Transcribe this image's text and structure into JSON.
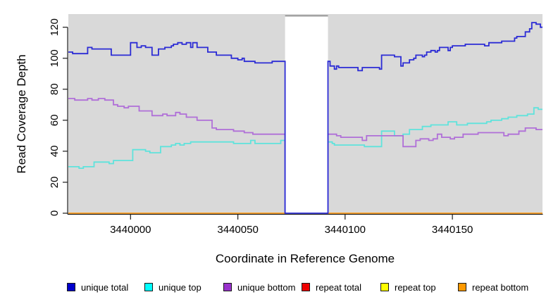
{
  "figure": {
    "title": ""
  },
  "chart_data": {
    "type": "line",
    "subtype": "step",
    "title": "",
    "xlabel": "Coordinate in Reference Genome",
    "ylabel": "Read Coverage Depth",
    "xlim": [
      3439971,
      3440192
    ],
    "ylim": [
      0,
      128.5
    ],
    "x_ticks": [
      "3440000",
      "3440050",
      "3440100",
      "3440150"
    ],
    "x_tick_values": [
      3440000,
      3440050,
      3440100,
      3440150
    ],
    "y_ticks": [
      "0",
      "20",
      "40",
      "60",
      "80",
      "100",
      "120"
    ],
    "y_tick_values": [
      0,
      20,
      40,
      60,
      80,
      100,
      120
    ],
    "grid": "off",
    "legend_position": "bottom",
    "plot_bg_color": "#D9D9D9",
    "gap_mask": {
      "x_start": 3440072,
      "x_end": 3440092,
      "fill": "#FFFFFF",
      "top_border_color": "#8C8C8C"
    },
    "series": [
      {
        "name": "unique total",
        "line_color": "#2B2BD5",
        "swatch_color": "#0000CC",
        "steps": [
          [
            3439971,
            104
          ],
          [
            3439973,
            103
          ],
          [
            3439980,
            107
          ],
          [
            3439982,
            106
          ],
          [
            3439991,
            102
          ],
          [
            3440000,
            110
          ],
          [
            3440003,
            107
          ],
          [
            3440005,
            108
          ],
          [
            3440007,
            107
          ],
          [
            3440010,
            102
          ],
          [
            3440013,
            106
          ],
          [
            3440016,
            107
          ],
          [
            3440019,
            108
          ],
          [
            3440020,
            109
          ],
          [
            3440022,
            110
          ],
          [
            3440024,
            109
          ],
          [
            3440026,
            110
          ],
          [
            3440028,
            107
          ],
          [
            3440029,
            110
          ],
          [
            3440031,
            107
          ],
          [
            3440036,
            104
          ],
          [
            3440040,
            102
          ],
          [
            3440047,
            100
          ],
          [
            3440050,
            99
          ],
          [
            3440052,
            100
          ],
          [
            3440053,
            98
          ],
          [
            3440058,
            97
          ],
          [
            3440066,
            98
          ],
          [
            3440072,
            0
          ],
          [
            3440092,
            98
          ],
          [
            3440093,
            95
          ],
          [
            3440095,
            93
          ],
          [
            3440096,
            95
          ],
          [
            3440097,
            94
          ],
          [
            3440106,
            92
          ],
          [
            3440108,
            94
          ],
          [
            3440116,
            93
          ],
          [
            3440117,
            102
          ],
          [
            3440123,
            101
          ],
          [
            3440126,
            95
          ],
          [
            3440127,
            97
          ],
          [
            3440130,
            99
          ],
          [
            3440132,
            100
          ],
          [
            3440133,
            102
          ],
          [
            3440136,
            101
          ],
          [
            3440137,
            102
          ],
          [
            3440138,
            104
          ],
          [
            3440140,
            105
          ],
          [
            3440142,
            104
          ],
          [
            3440143,
            105
          ],
          [
            3440144,
            107
          ],
          [
            3440148,
            105
          ],
          [
            3440149,
            107
          ],
          [
            3440150,
            108
          ],
          [
            3440156,
            109
          ],
          [
            3440165,
            108
          ],
          [
            3440167,
            110
          ],
          [
            3440173,
            111
          ],
          [
            3440179,
            113
          ],
          [
            3440180,
            114
          ],
          [
            3440184,
            117
          ],
          [
            3440186,
            119
          ],
          [
            3440187,
            123
          ],
          [
            3440189,
            122
          ],
          [
            3440191,
            120
          ]
        ]
      },
      {
        "name": "unique top",
        "line_color": "#5FE3DC",
        "swatch_color": "#00FFFF",
        "steps": [
          [
            3439971,
            30
          ],
          [
            3439976,
            29
          ],
          [
            3439978,
            30
          ],
          [
            3439983,
            33
          ],
          [
            3439990,
            32
          ],
          [
            3439992,
            34
          ],
          [
            3440001,
            41
          ],
          [
            3440007,
            40
          ],
          [
            3440009,
            39
          ],
          [
            3440014,
            43
          ],
          [
            3440019,
            44
          ],
          [
            3440021,
            45
          ],
          [
            3440023,
            44
          ],
          [
            3440025,
            45
          ],
          [
            3440028,
            46
          ],
          [
            3440048,
            45
          ],
          [
            3440056,
            47
          ],
          [
            3440058,
            45
          ],
          [
            3440070,
            47
          ],
          [
            3440072,
            0
          ],
          [
            3440092,
            46
          ],
          [
            3440094,
            45
          ],
          [
            3440095,
            44
          ],
          [
            3440109,
            43
          ],
          [
            3440117,
            53
          ],
          [
            3440123,
            50
          ],
          [
            3440127,
            51
          ],
          [
            3440130,
            54
          ],
          [
            3440136,
            56
          ],
          [
            3440140,
            57
          ],
          [
            3440148,
            59
          ],
          [
            3440152,
            57
          ],
          [
            3440157,
            58
          ],
          [
            3440166,
            59
          ],
          [
            3440168,
            60
          ],
          [
            3440173,
            61
          ],
          [
            3440176,
            62
          ],
          [
            3440180,
            63
          ],
          [
            3440185,
            64
          ],
          [
            3440188,
            68
          ],
          [
            3440190,
            67
          ]
        ]
      },
      {
        "name": "unique bottom",
        "line_color": "#B06FD8",
        "swatch_color": "#9932CC",
        "steps": [
          [
            3439971,
            74
          ],
          [
            3439974,
            73
          ],
          [
            3439980,
            74
          ],
          [
            3439982,
            73
          ],
          [
            3439985,
            74
          ],
          [
            3439988,
            73
          ],
          [
            3439992,
            70
          ],
          [
            3439994,
            69
          ],
          [
            3439997,
            68
          ],
          [
            3439999,
            69
          ],
          [
            3440004,
            66
          ],
          [
            3440010,
            63
          ],
          [
            3440015,
            64
          ],
          [
            3440017,
            63
          ],
          [
            3440021,
            65
          ],
          [
            3440023,
            64
          ],
          [
            3440026,
            62
          ],
          [
            3440031,
            60
          ],
          [
            3440038,
            55
          ],
          [
            3440040,
            54
          ],
          [
            3440048,
            53
          ],
          [
            3440053,
            52
          ],
          [
            3440057,
            51
          ],
          [
            3440072,
            0
          ],
          [
            3440092,
            51
          ],
          [
            3440096,
            50
          ],
          [
            3440098,
            49
          ],
          [
            3440108,
            47
          ],
          [
            3440110,
            50
          ],
          [
            3440127,
            43
          ],
          [
            3440133,
            47
          ],
          [
            3440135,
            48
          ],
          [
            3440139,
            47
          ],
          [
            3440141,
            48
          ],
          [
            3440143,
            51
          ],
          [
            3440145,
            49
          ],
          [
            3440149,
            48
          ],
          [
            3440151,
            49
          ],
          [
            3440155,
            51
          ],
          [
            3440162,
            52
          ],
          [
            3440174,
            50
          ],
          [
            3440176,
            51
          ],
          [
            3440181,
            53
          ],
          [
            3440184,
            55
          ],
          [
            3440189,
            54
          ]
        ]
      },
      {
        "name": "repeat total",
        "line_color": "#DD0000",
        "swatch_color": "#EE0000",
        "steps": [
          [
            3439971,
            0
          ]
        ]
      },
      {
        "name": "repeat top",
        "line_color": "#FFFF00",
        "swatch_color": "#FFFF00",
        "steps": [
          [
            3439971,
            0
          ]
        ]
      },
      {
        "name": "repeat bottom",
        "line_color": "#FFA033",
        "swatch_color": "#FF9900",
        "steps": [
          [
            3439971,
            0
          ]
        ]
      }
    ]
  }
}
